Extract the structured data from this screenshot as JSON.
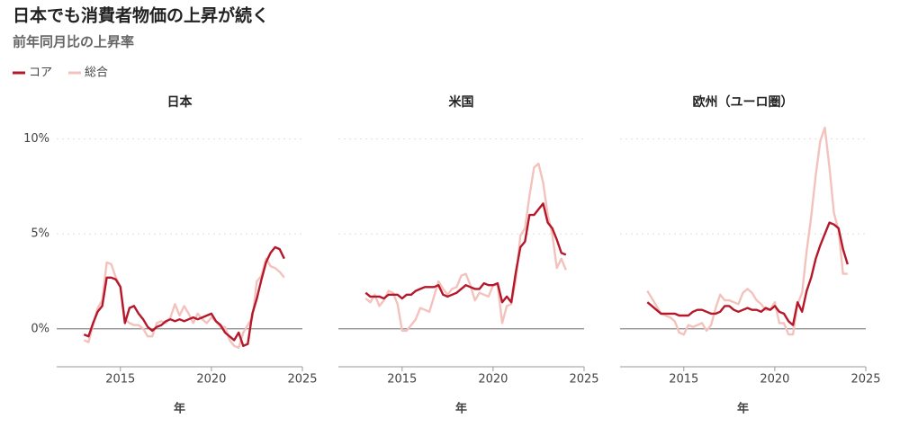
{
  "title": "日本でも消費者物価の上昇が続く",
  "subtitle": "前年同月比の上昇率",
  "chart_data": [
    {
      "type": "line",
      "title": "日本",
      "xlabel": "年",
      "x": [
        2013,
        2013.25,
        2013.5,
        2013.75,
        2014,
        2014.25,
        2014.5,
        2014.75,
        2015,
        2015.25,
        2015.5,
        2015.75,
        2016,
        2016.25,
        2016.5,
        2016.75,
        2017,
        2017.25,
        2017.5,
        2017.75,
        2018,
        2018.25,
        2018.5,
        2018.75,
        2019,
        2019.25,
        2019.5,
        2019.75,
        2020,
        2020.25,
        2020.5,
        2020.75,
        2021,
        2021.25,
        2021.5,
        2021.75,
        2022,
        2022.25,
        2022.5,
        2022.75,
        2023,
        2023.25,
        2023.5,
        2023.75,
        2024
      ],
      "xlim": [
        2011.5,
        2025
      ],
      "xticks": [
        2015,
        2020,
        2025
      ],
      "ylim": [
        -2,
        10.6
      ],
      "yticks": [
        {
          "value": 0,
          "label": "0%"
        },
        {
          "value": 5,
          "label": "5%"
        },
        {
          "value": 10,
          "label": "10%"
        }
      ],
      "series": [
        {
          "name": "コア",
          "color": "#b5172b",
          "values": [
            -0.3,
            -0.4,
            0.3,
            0.9,
            1.2,
            2.7,
            2.7,
            2.6,
            2.2,
            0.3,
            1.1,
            1.2,
            0.8,
            0.5,
            0.1,
            -0.1,
            0.1,
            0.2,
            0.4,
            0.5,
            0.4,
            0.5,
            0.4,
            0.5,
            0.6,
            0.5,
            0.6,
            0.7,
            0.8,
            0.4,
            0.2,
            -0.2,
            -0.4,
            -0.6,
            -0.2,
            -0.9,
            -0.8,
            0.8,
            1.6,
            2.6,
            3.5,
            4.0,
            4.3,
            4.2,
            3.7
          ]
        },
        {
          "name": "総合",
          "color": "#f4c2bc",
          "values": [
            -0.6,
            -0.7,
            0.2,
            1.1,
            1.5,
            3.5,
            3.4,
            2.7,
            2.2,
            0.5,
            0.3,
            0.2,
            0.2,
            0,
            -0.4,
            -0.4,
            0.3,
            0.4,
            0.3,
            0.6,
            1.3,
            0.7,
            1.2,
            0.8,
            0.3,
            0.8,
            0.5,
            0.3,
            0.6,
            0.4,
            0.1,
            0.1,
            -0.6,
            -0.9,
            -1.0,
            -0.2,
            0.2,
            0.6,
            2.5,
            2.8,
            3.7,
            3.3,
            3.2,
            3.0,
            2.7
          ]
        }
      ]
    },
    {
      "type": "line",
      "title": "米国",
      "xlabel": "年",
      "x": [
        2013,
        2013.25,
        2013.5,
        2013.75,
        2014,
        2014.25,
        2014.5,
        2014.75,
        2015,
        2015.25,
        2015.5,
        2015.75,
        2016,
        2016.25,
        2016.5,
        2016.75,
        2017,
        2017.25,
        2017.5,
        2017.75,
        2018,
        2018.25,
        2018.5,
        2018.75,
        2019,
        2019.25,
        2019.5,
        2019.75,
        2020,
        2020.25,
        2020.5,
        2020.75,
        2021,
        2021.25,
        2021.5,
        2021.75,
        2022,
        2022.25,
        2022.5,
        2022.75,
        2023,
        2023.25,
        2023.5,
        2023.75,
        2024
      ],
      "xlim": [
        2011.5,
        2025
      ],
      "xticks": [
        2015,
        2020,
        2025
      ],
      "ylim": [
        -2,
        10.6
      ],
      "yticks": [
        0,
        5,
        10
      ],
      "series": [
        {
          "color": "#b5172b",
          "values": [
            1.9,
            1.7,
            1.7,
            1.7,
            1.6,
            1.8,
            1.8,
            1.8,
            1.6,
            1.8,
            1.8,
            2.0,
            2.1,
            2.2,
            2.2,
            2.2,
            2.3,
            1.8,
            1.7,
            1.8,
            1.9,
            2.1,
            2.3,
            2.2,
            2.1,
            2.1,
            2.4,
            2.3,
            2.3,
            2.4,
            1.4,
            1.7,
            1.4,
            3.0,
            4.3,
            4.6,
            6.0,
            6.0,
            6.3,
            6.6,
            5.6,
            5.3,
            4.7,
            4.0,
            3.9
          ]
        },
        {
          "color": "#f4c2bc",
          "values": [
            1.6,
            1.4,
            1.8,
            1.2,
            1.5,
            2.0,
            1.9,
            1.3,
            -0.1,
            -0.1,
            0.2,
            0.5,
            1.1,
            1.0,
            0.9,
            1.7,
            2.5,
            2.1,
            1.8,
            2.1,
            2.2,
            2.8,
            2.9,
            2.3,
            1.5,
            1.9,
            1.8,
            1.7,
            2.3,
            2.3,
            0.3,
            1.2,
            1.3,
            2.6,
            4.9,
            5.3,
            7.0,
            8.5,
            8.7,
            7.7,
            6.0,
            5.0,
            3.2,
            3.7,
            3.1
          ]
        }
      ]
    },
    {
      "type": "line",
      "title": "欧州（ユーロ圏）",
      "xlabel": "年",
      "x": [
        2013,
        2013.25,
        2013.5,
        2013.75,
        2014,
        2014.25,
        2014.5,
        2014.75,
        2015,
        2015.25,
        2015.5,
        2015.75,
        2016,
        2016.25,
        2016.5,
        2016.75,
        2017,
        2017.25,
        2017.5,
        2017.75,
        2018,
        2018.25,
        2018.5,
        2018.75,
        2019,
        2019.25,
        2019.5,
        2019.75,
        2020,
        2020.25,
        2020.5,
        2020.75,
        2021,
        2021.25,
        2021.5,
        2021.75,
        2022,
        2022.25,
        2022.5,
        2022.75,
        2023,
        2023.25,
        2023.5,
        2023.75,
        2024
      ],
      "xlim": [
        2011.5,
        2025
      ],
      "xticks": [
        2015,
        2020,
        2025
      ],
      "ylim": [
        -2,
        10.6
      ],
      "yticks": [
        0,
        5,
        10
      ],
      "series": [
        {
          "color": "#b5172b",
          "values": [
            1.4,
            1.2,
            1.0,
            0.8,
            0.8,
            0.8,
            0.8,
            0.7,
            0.7,
            0.7,
            0.9,
            1.0,
            1.0,
            0.9,
            0.8,
            0.8,
            0.9,
            1.2,
            1.2,
            1.0,
            0.9,
            1.0,
            1.1,
            1.0,
            1.0,
            0.9,
            1.1,
            1.0,
            1.2,
            0.9,
            0.8,
            0.4,
            0.2,
            1.4,
            0.9,
            2.0,
            2.7,
            3.7,
            4.4,
            5.0,
            5.6,
            5.5,
            5.3,
            4.2,
            3.4
          ]
        },
        {
          "color": "#f4c2bc",
          "values": [
            2.0,
            1.6,
            1.2,
            0.8,
            0.7,
            0.6,
            0.4,
            -0.2,
            -0.3,
            0.2,
            0.1,
            0.2,
            0.3,
            -0.1,
            0.2,
            1.1,
            1.8,
            1.5,
            1.5,
            1.4,
            1.3,
            1.9,
            2.1,
            1.9,
            1.5,
            1.3,
            1.0,
            1.0,
            1.4,
            0.3,
            0.3,
            -0.3,
            -0.3,
            1.3,
            1.9,
            4.1,
            5.9,
            8.1,
            9.9,
            10.6,
            8.5,
            6.1,
            5.2,
            2.9,
            2.9
          ]
        }
      ]
    }
  ]
}
